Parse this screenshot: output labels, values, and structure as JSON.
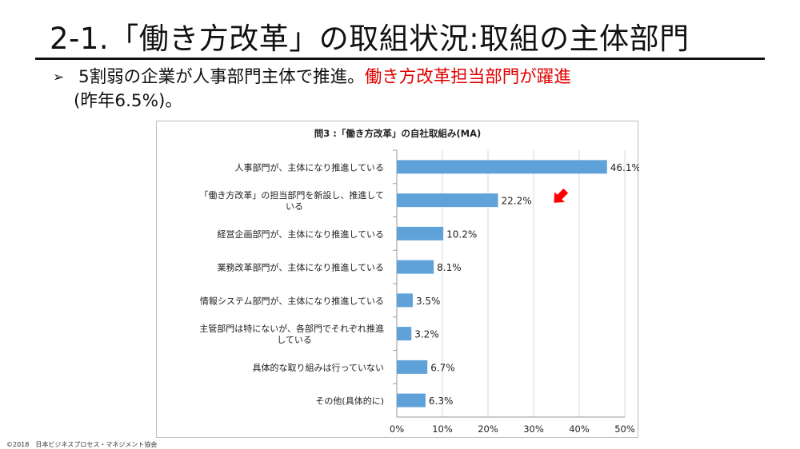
{
  "slide": {
    "title": "2-1.「働き方改革」の取組状況:取組の主体部門",
    "bullet_marker": "➢",
    "bullet_text_1": "5割弱の企業が人事部門主体で推進。",
    "bullet_highlight": "働き方改革担当部門が躍進",
    "bullet_text_2": "(昨年6.5%)。",
    "footer": "©2018　日本ビジネスプロセス・マネジメント協会"
  },
  "colors": {
    "bar": "#5fa2d9",
    "highlight_text": "#e00000",
    "arrow": "#ff0000",
    "grid": "#d9d9d9"
  },
  "chart_data": {
    "type": "bar",
    "orientation": "horizontal",
    "title": "問3 :「働き方改革」の自社取組み(MA)",
    "categories": [
      [
        "人事部門が、主体になり推進している"
      ],
      [
        "「働き方改革」の担当部門を新設し、推進して",
        "いる"
      ],
      [
        "経営企画部門が、主体になり推進している"
      ],
      [
        "業務改革部門が、主体になり推進している"
      ],
      [
        "情報システム部門が、主体になり推進している"
      ],
      [
        "主管部門は特にないが、各部門でそれぞれ推進",
        "している"
      ],
      [
        "具体的な取り組みは行っていない"
      ],
      [
        "その他(具体的に)"
      ]
    ],
    "values": [
      46.1,
      22.2,
      10.2,
      8.1,
      3.5,
      3.2,
      6.7,
      6.3
    ],
    "value_labels": [
      "46.1%",
      "22.2%",
      "10.2%",
      "8.1%",
      "3.5%",
      "3.2%",
      "6.7%",
      "6.3%"
    ],
    "xlim": [
      0,
      50
    ],
    "x_ticks": [
      0,
      10,
      20,
      30,
      40,
      50
    ],
    "x_tick_labels": [
      "0%",
      "10%",
      "20%",
      "30%",
      "40%",
      "50%"
    ],
    "grid": true,
    "highlight_index": 1
  }
}
